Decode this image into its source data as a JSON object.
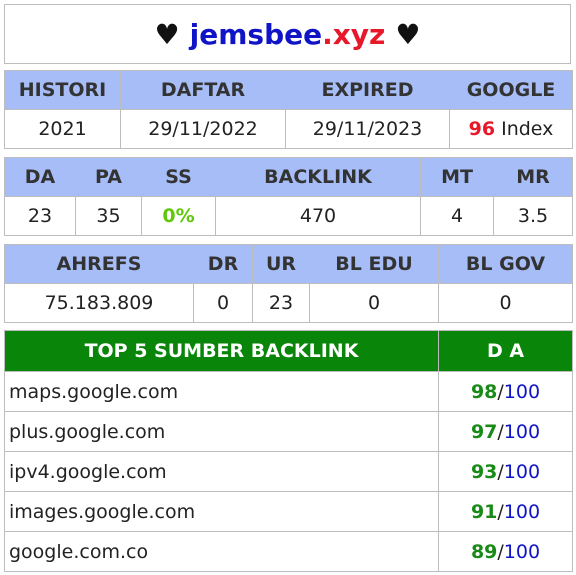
{
  "header": {
    "heart": "♥",
    "domain_part1": "jemsbee",
    "domain_part2": ".xyz"
  },
  "table1": {
    "headers": [
      "HISTORI",
      "DAFTAR",
      "EXPIRED",
      "GOOGLE"
    ],
    "values": {
      "histori": "2021",
      "daftar": "29/11/2022",
      "expired": "29/11/2023",
      "google_count": "96",
      "google_label": "Index"
    }
  },
  "table2": {
    "headers": [
      "DA",
      "PA",
      "SS",
      "BACKLINK",
      "MT",
      "MR"
    ],
    "values": [
      "23",
      "35",
      "0%",
      "470",
      "4",
      "3.5"
    ]
  },
  "table3": {
    "headers": [
      "AHREFS",
      "DR",
      "UR",
      "BL EDU",
      "BL GOV"
    ],
    "values": [
      "75.183.809",
      "0",
      "23",
      "0",
      "0"
    ]
  },
  "top5": {
    "headers": [
      "TOP 5 SUMBER BACKLINK",
      "D A"
    ],
    "rows": [
      {
        "site": "maps.google.com",
        "da": "98",
        "max": "100"
      },
      {
        "site": "plus.google.com",
        "da": "97",
        "max": "100"
      },
      {
        "site": "ipv4.google.com",
        "da": "93",
        "max": "100"
      },
      {
        "site": "images.google.com",
        "da": "91",
        "max": "100"
      },
      {
        "site": "google.com.co",
        "da": "89",
        "max": "100"
      }
    ],
    "separator": "/"
  },
  "colors": {
    "header_blue": "#a7bdf8",
    "green_header": "#098609",
    "domain_blue": "#0f14c6",
    "domain_red": "#e8182b"
  }
}
